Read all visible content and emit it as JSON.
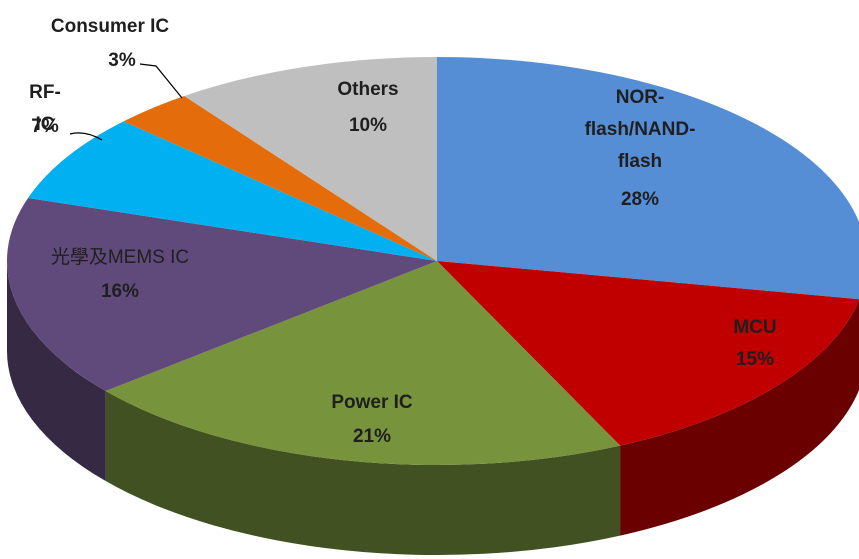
{
  "chart_data": {
    "type": "pie",
    "categories": [
      "NOR-flash/NAND-flash",
      "MCU",
      "Power IC",
      "光學及MEMS IC",
      "RF-IC",
      "Consumer IC",
      "Others"
    ],
    "values": [
      28,
      15,
      21,
      16,
      7,
      3,
      10
    ],
    "value_labels": [
      "28%",
      "15%",
      "21%",
      "16%",
      "7%",
      "3%",
      "10%"
    ],
    "colors": [
      "#558ed5",
      "#c00000",
      "#77933c",
      "#604a7b",
      "#00b0f0",
      "#e46c0a",
      "#bfbfbf"
    ]
  }
}
